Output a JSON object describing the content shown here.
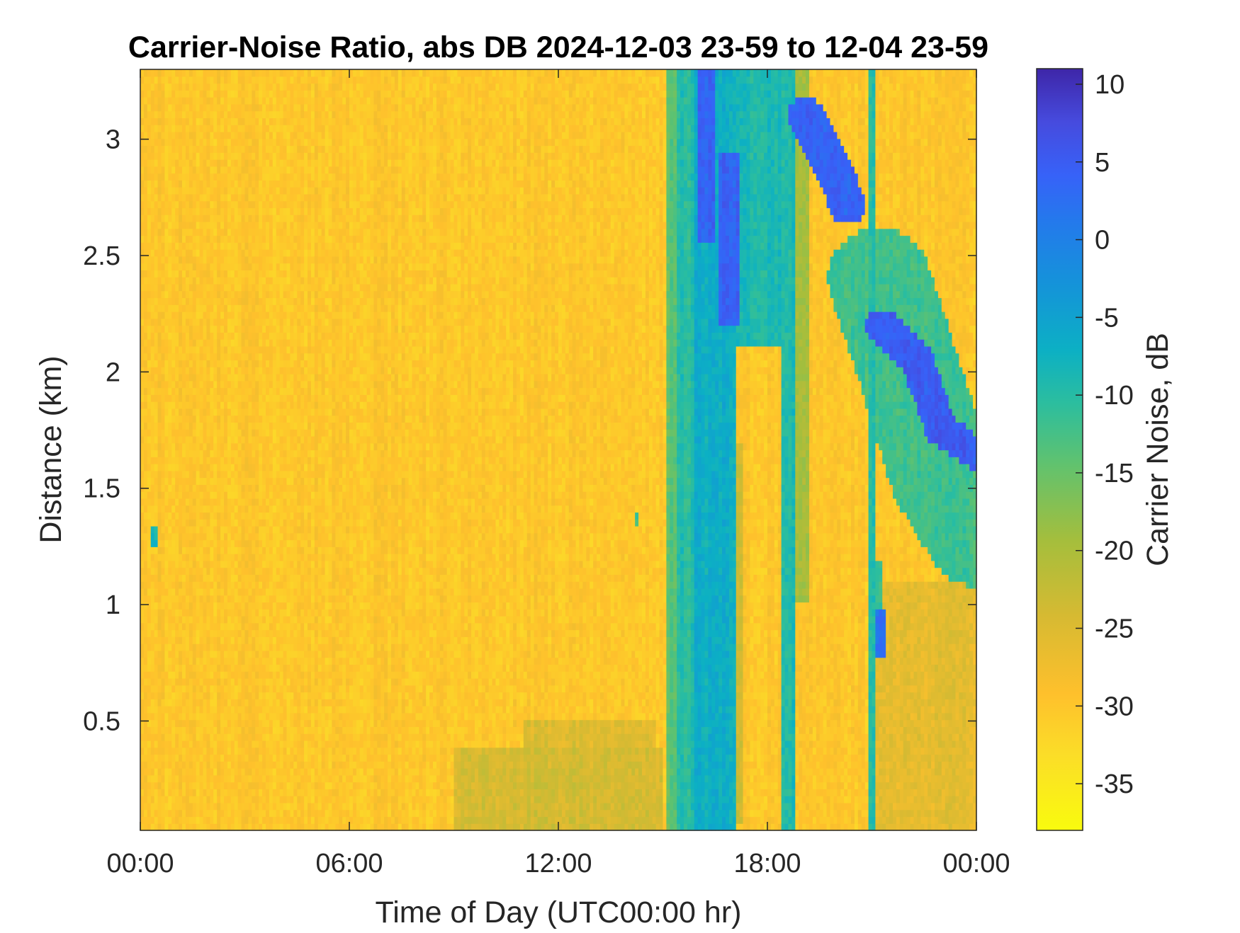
{
  "chart_data": {
    "type": "heatmap",
    "title": "Carrier-Noise Ratio, abs DB 2024-12-03 23-59 to 12-04 23-59",
    "xlabel": "Time of Day (UTC00:00 hr)",
    "ylabel": "Distance (km)",
    "xlim": [
      0,
      24
    ],
    "ylim": [
      0.03,
      3.3
    ],
    "x_ticks": [
      {
        "value": 0,
        "label": "00:00"
      },
      {
        "value": 6,
        "label": "06:00"
      },
      {
        "value": 12,
        "label": "12:00"
      },
      {
        "value": 18,
        "label": "18:00"
      },
      {
        "value": 24,
        "label": "00:00"
      }
    ],
    "y_ticks": [
      {
        "value": 0.5,
        "label": "0.5"
      },
      {
        "value": 1,
        "label": "1"
      },
      {
        "value": 1.5,
        "label": "1.5"
      },
      {
        "value": 2,
        "label": "2"
      },
      {
        "value": 2.5,
        "label": "2.5"
      },
      {
        "value": 3,
        "label": "3"
      }
    ],
    "colorbar": {
      "label": "Carrier Noise, dB",
      "range": [
        -38,
        11
      ],
      "colormap": "parula",
      "ticks": [
        {
          "value": 10,
          "label": "10"
        },
        {
          "value": 5,
          "label": "5"
        },
        {
          "value": 0,
          "label": "0"
        },
        {
          "value": -5,
          "label": "-5"
        },
        {
          "value": -10,
          "label": "-10"
        },
        {
          "value": -15,
          "label": "-15"
        },
        {
          "value": -20,
          "label": "-20"
        },
        {
          "value": -25,
          "label": "-25"
        },
        {
          "value": -30,
          "label": "-30"
        },
        {
          "value": -35,
          "label": "-35"
        }
      ]
    },
    "background_value": -30,
    "features": [
      {
        "kind": "band",
        "x": [
          15.1,
          15.4
        ],
        "y": [
          0.03,
          3.3
        ],
        "value": -14
      },
      {
        "kind": "band",
        "x": [
          15.4,
          15.9
        ],
        "y": [
          0.03,
          3.3
        ],
        "value": -10
      },
      {
        "kind": "band",
        "x": [
          15.9,
          17.1
        ],
        "y": [
          0.03,
          3.3
        ],
        "value": -7
      },
      {
        "kind": "band",
        "x": [
          16.0,
          16.5
        ],
        "y": [
          2.55,
          3.3
        ],
        "value": 4
      },
      {
        "kind": "band",
        "x": [
          16.6,
          17.2
        ],
        "y": [
          2.2,
          2.95
        ],
        "value": 4
      },
      {
        "kind": "band",
        "x": [
          17.1,
          18.4
        ],
        "y": [
          2.1,
          3.3
        ],
        "value": -9
      },
      {
        "kind": "band",
        "x": [
          17.0,
          17.3
        ],
        "y": [
          0.05,
          1.7
        ],
        "value": -24
      },
      {
        "kind": "band",
        "x": [
          18.4,
          18.8
        ],
        "y": [
          0.03,
          3.3
        ],
        "value": -9
      },
      {
        "kind": "band",
        "x": [
          18.8,
          19.2
        ],
        "y": [
          1.0,
          3.3
        ],
        "value": -20
      },
      {
        "kind": "band",
        "x": [
          20.95,
          21.05
        ],
        "y": [
          0.03,
          3.3
        ],
        "value": -10
      },
      {
        "kind": "band",
        "x": [
          21.15,
          21.45
        ],
        "y": [
          0.78,
          0.98
        ],
        "value": 2
      },
      {
        "kind": "band",
        "x": [
          21.0,
          21.3
        ],
        "y": [
          0.98,
          1.2
        ],
        "value": -12
      },
      {
        "kind": "band",
        "x": [
          9.0,
          15.0
        ],
        "y": [
          0.03,
          0.38
        ],
        "value": -24
      },
      {
        "kind": "band",
        "x": [
          11.0,
          14.8
        ],
        "y": [
          0.38,
          0.5
        ],
        "value": -25
      },
      {
        "kind": "band",
        "x": [
          21.0,
          24.0
        ],
        "y": [
          0.03,
          1.1
        ],
        "value": -26
      },
      {
        "kind": "band",
        "x": [
          0.35,
          0.45
        ],
        "y": [
          1.25,
          1.35
        ],
        "value": -8
      },
      {
        "kind": "band",
        "x": [
          14.2,
          14.3
        ],
        "y": [
          1.35,
          1.4
        ],
        "value": -12
      },
      {
        "kind": "streak",
        "points": [
          [
            19.1,
            3.1
          ],
          [
            20.1,
            2.8
          ],
          [
            20.3,
            2.72
          ]
        ],
        "halfwidth": 0.08,
        "value": 4
      },
      {
        "kind": "streak",
        "points": [
          [
            21.3,
            2.2
          ],
          [
            22.3,
            2.05
          ],
          [
            23.0,
            1.75
          ],
          [
            24.0,
            1.65
          ]
        ],
        "halfwidth": 0.07,
        "value": 5
      },
      {
        "kind": "streak",
        "points": [
          [
            21.2,
            2.4
          ],
          [
            22.3,
            1.9
          ],
          [
            23.0,
            1.55
          ],
          [
            24.0,
            1.3
          ]
        ],
        "halfwidth": 0.22,
        "value": -12
      }
    ]
  }
}
